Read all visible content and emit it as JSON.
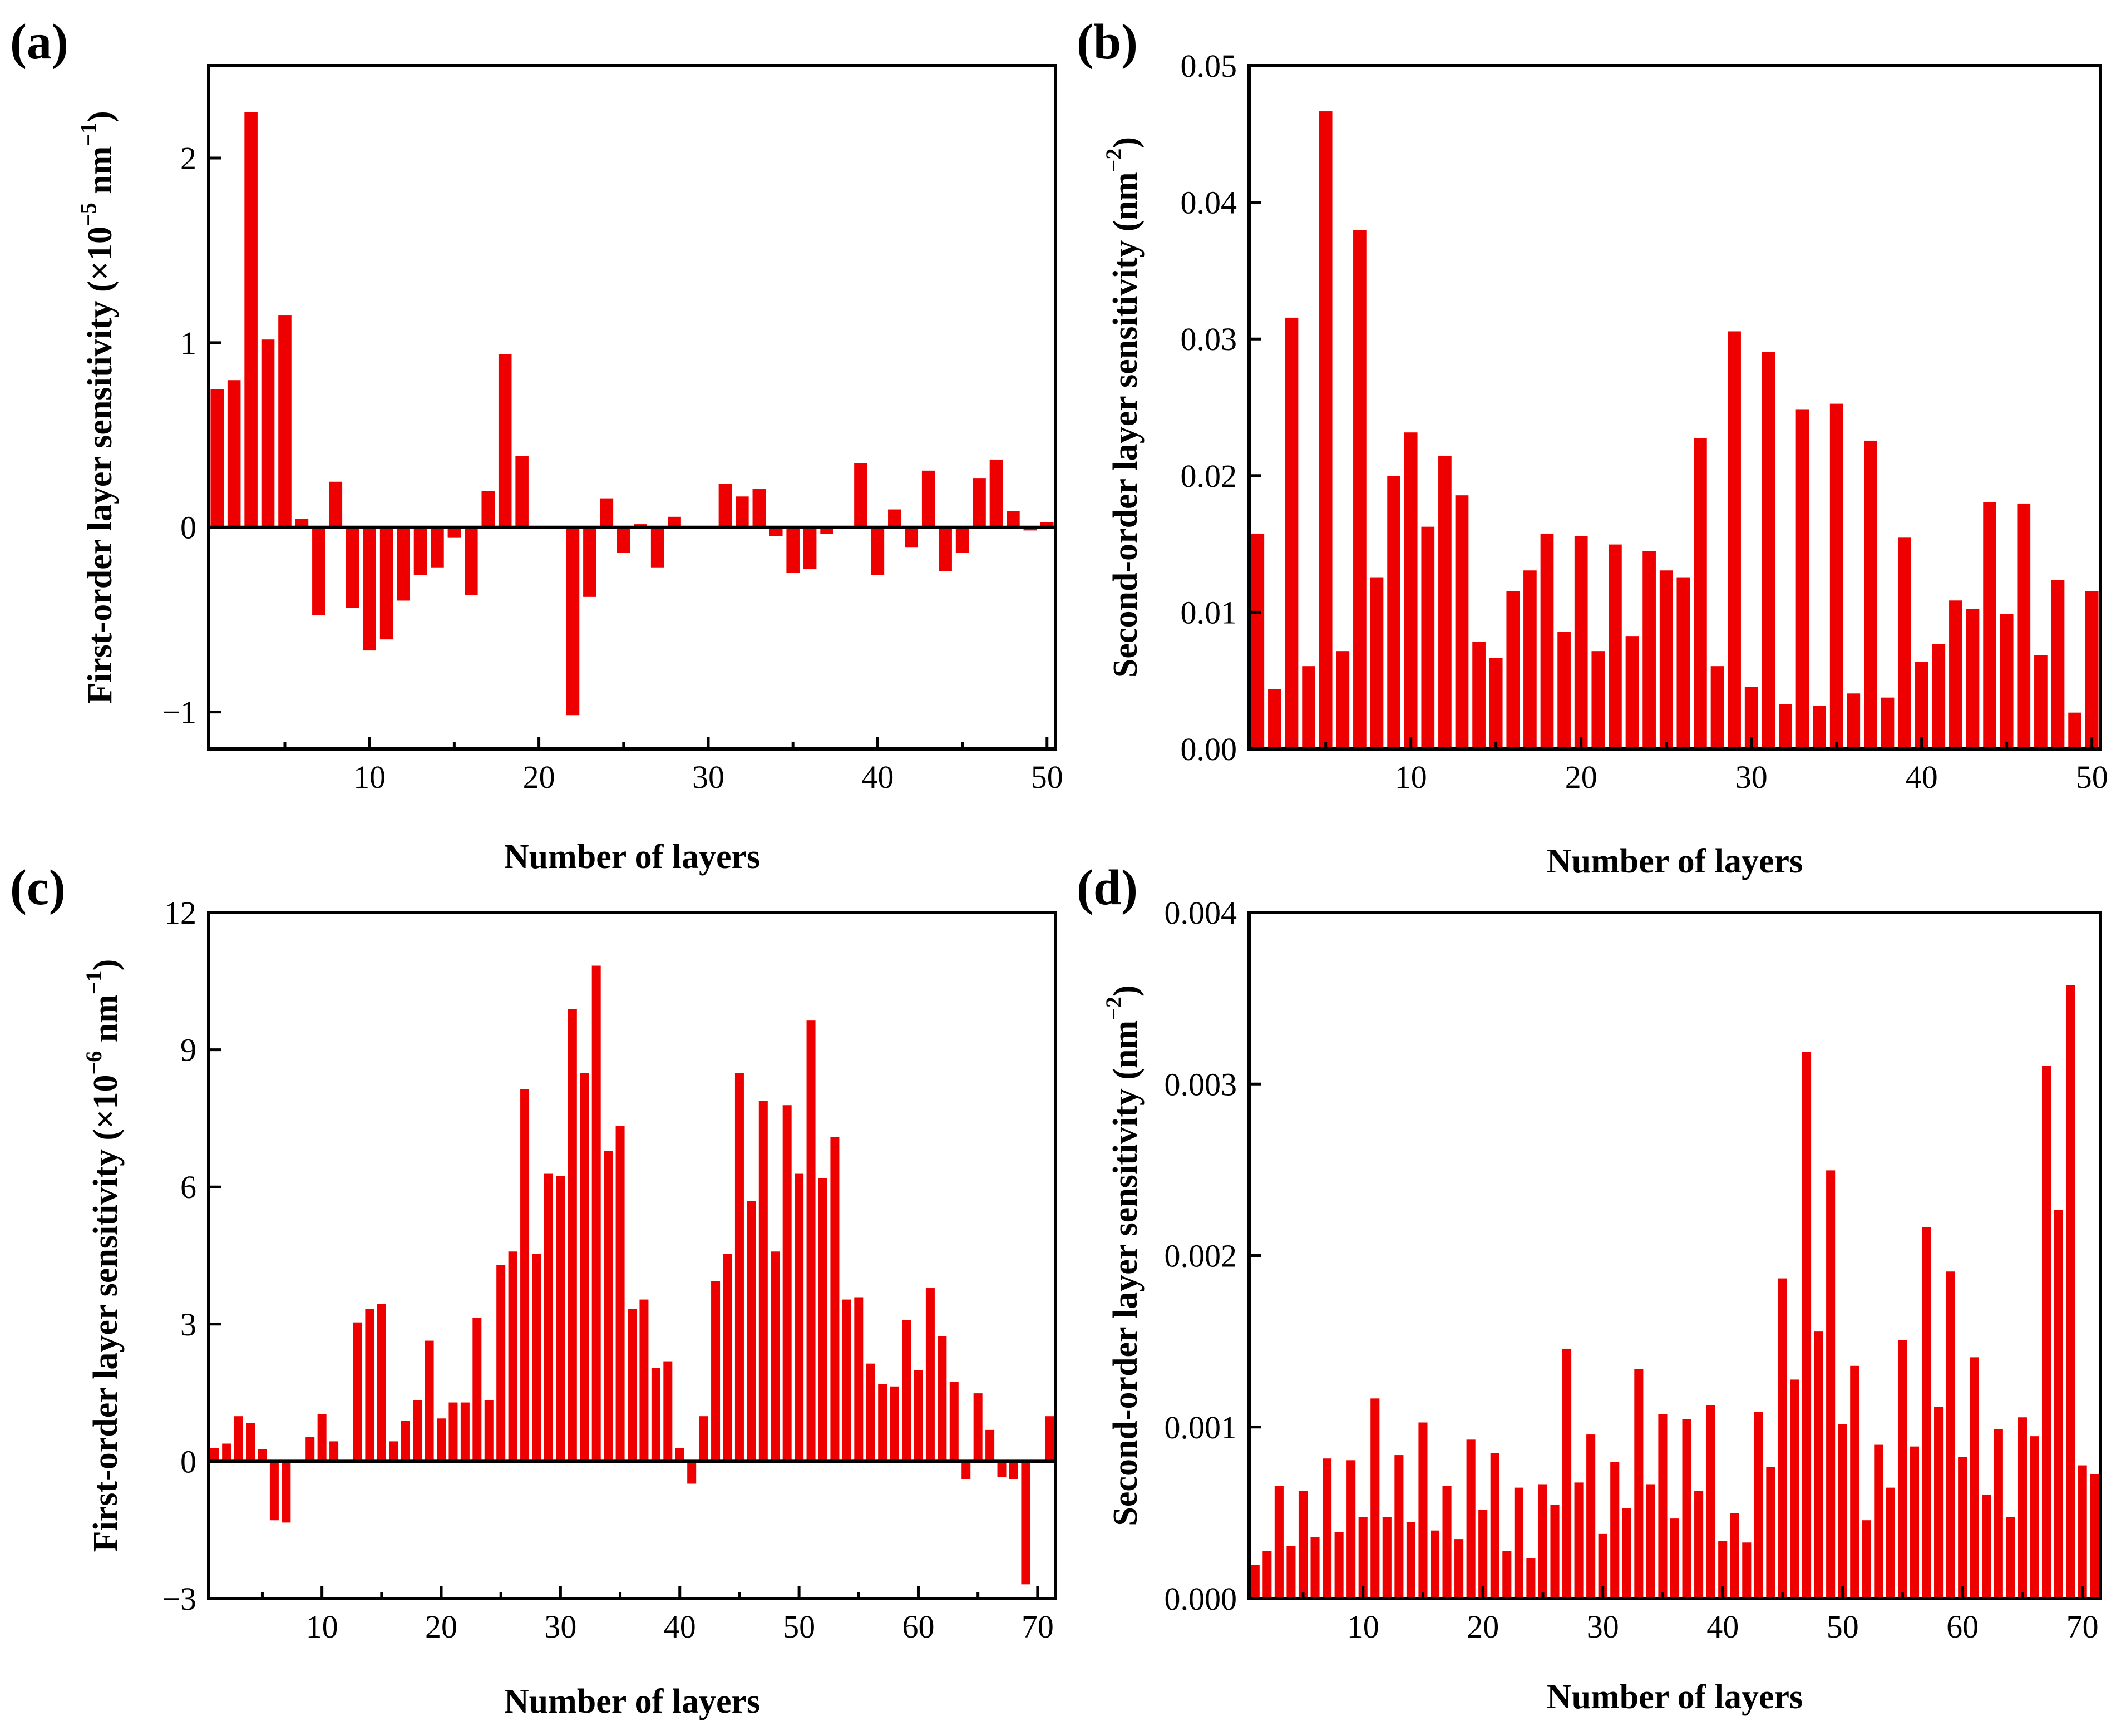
{
  "figure": {
    "bar_color": "#ee0000",
    "axis_color": "#000000",
    "background": "#ffffff"
  },
  "chart_data": [
    {
      "panel": "(a)",
      "type": "bar",
      "title": "",
      "xlabel": "Number of layers",
      "ylabel_pre": "First-order layer sensitivity (×10",
      "ylabel_exp": "−5",
      "ylabel_mid": " nm",
      "ylabel_exp2": "−1",
      "ylabel_post": ")",
      "xlim": [
        0.5,
        50.5
      ],
      "ylim": [
        -1.2,
        2.5
      ],
      "xticks": [
        10,
        20,
        30,
        40,
        50
      ],
      "xtick_labels": [
        "10",
        "20",
        "30",
        "40",
        "50"
      ],
      "yticks": [
        -1,
        0,
        1,
        2
      ],
      "ytick_labels": [
        "−1",
        "0",
        "1",
        "2"
      ],
      "zero_line": true,
      "x": [
        1,
        2,
        3,
        4,
        5,
        6,
        7,
        8,
        9,
        10,
        11,
        12,
        13,
        14,
        15,
        16,
        17,
        18,
        19,
        20,
        21,
        22,
        23,
        24,
        25,
        26,
        27,
        28,
        29,
        30,
        31,
        32,
        33,
        34,
        35,
        36,
        37,
        38,
        39,
        40,
        41,
        42,
        43,
        44,
        45,
        46,
        47,
        48,
        49,
        50
      ],
      "values": [
        0.75,
        0.8,
        2.25,
        1.02,
        1.15,
        0.05,
        -0.48,
        0.25,
        -0.44,
        -0.67,
        -0.61,
        -0.4,
        -0.26,
        -0.22,
        -0.06,
        -0.37,
        0.2,
        0.94,
        0.39,
        0,
        -0.01,
        -1.02,
        -0.38,
        0.16,
        -0.14,
        0.02,
        -0.22,
        0.06,
        0,
        -0.01,
        0.24,
        0.17,
        0.21,
        -0.05,
        -0.25,
        -0.23,
        -0.04,
        0,
        0.35,
        -0.26,
        0.1,
        -0.11,
        0.31,
        -0.24,
        -0.14,
        0.27,
        0.37,
        0.09,
        -0.02,
        0.03
      ]
    },
    {
      "panel": "(b)",
      "type": "bar",
      "title": "",
      "xlabel": "Number of layers",
      "ylabel_pre": "Second-order layer sensitivity (nm",
      "ylabel_exp": "−2",
      "ylabel_mid": "",
      "ylabel_exp2": "",
      "ylabel_post": ")",
      "xlim": [
        0.5,
        50.5
      ],
      "ylim": [
        0,
        0.05
      ],
      "xticks": [
        10,
        20,
        30,
        40,
        50
      ],
      "xtick_labels": [
        "10",
        "20",
        "30",
        "40",
        "50"
      ],
      "yticks": [
        0,
        0.01,
        0.02,
        0.03,
        0.04,
        0.05
      ],
      "ytick_labels": [
        "0.00",
        "0.01",
        "0.02",
        "0.03",
        "0.04",
        "0.05"
      ],
      "zero_line": false,
      "x": [
        1,
        2,
        3,
        4,
        5,
        6,
        7,
        8,
        9,
        10,
        11,
        12,
        13,
        14,
        15,
        16,
        17,
        18,
        19,
        20,
        21,
        22,
        23,
        24,
        25,
        26,
        27,
        28,
        29,
        30,
        31,
        32,
        33,
        34,
        35,
        36,
        37,
        38,
        39,
        40,
        41,
        42,
        43,
        44,
        45,
        46,
        47,
        48,
        49,
        50
      ],
      "values": [
        0.0158,
        0.0044,
        0.0316,
        0.0061,
        0.0467,
        0.0072,
        0.038,
        0.0126,
        0.02,
        0.0232,
        0.0163,
        0.0215,
        0.0186,
        0.0079,
        0.0067,
        0.0116,
        0.0131,
        0.0158,
        0.0086,
        0.0156,
        0.0072,
        0.015,
        0.0083,
        0.0145,
        0.0131,
        0.0126,
        0.0228,
        0.0061,
        0.0306,
        0.0046,
        0.0291,
        0.0033,
        0.0249,
        0.0032,
        0.0253,
        0.0041,
        0.0226,
        0.0038,
        0.0155,
        0.0064,
        0.0077,
        0.0109,
        0.0103,
        0.0181,
        0.0099,
        0.018,
        0.0069,
        0.0124,
        0.0027,
        0.0116
      ]
    },
    {
      "panel": "(c)",
      "type": "bar",
      "title": "",
      "xlabel": "Number of layers",
      "ylabel_pre": "First-order layer sensitivity (×10",
      "ylabel_exp": "−6",
      "ylabel_mid": " nm",
      "ylabel_exp2": "−1",
      "ylabel_post": ")",
      "xlim": [
        0.5,
        71.5
      ],
      "ylim": [
        -3,
        12
      ],
      "xticks": [
        10,
        20,
        30,
        40,
        50,
        60,
        70
      ],
      "xtick_labels": [
        "10",
        "20",
        "30",
        "40",
        "50",
        "60",
        "70"
      ],
      "yticks": [
        -3,
        0,
        3,
        6,
        9,
        12
      ],
      "ytick_labels": [
        "−3",
        "0",
        "3",
        "6",
        "9",
        "12"
      ],
      "zero_line": true,
      "x": [
        1,
        2,
        3,
        4,
        5,
        6,
        7,
        8,
        9,
        10,
        11,
        12,
        13,
        14,
        15,
        16,
        17,
        18,
        19,
        20,
        21,
        22,
        23,
        24,
        25,
        26,
        27,
        28,
        29,
        30,
        31,
        32,
        33,
        34,
        35,
        36,
        37,
        38,
        39,
        40,
        41,
        42,
        43,
        44,
        45,
        46,
        47,
        48,
        49,
        50,
        51,
        52,
        53,
        54,
        55,
        56,
        57,
        58,
        59,
        60,
        61,
        62,
        63,
        64,
        65,
        66,
        67,
        68,
        69,
        70,
        71
      ],
      "values": [
        0.3,
        0.4,
        1.0,
        0.85,
        0.28,
        -1.3,
        -1.35,
        0,
        0.55,
        1.05,
        0.45,
        0,
        3.05,
        3.35,
        3.45,
        0.45,
        0.9,
        1.35,
        2.65,
        0.95,
        1.3,
        1.3,
        3.15,
        1.35,
        4.3,
        4.6,
        8.15,
        4.55,
        6.3,
        6.25,
        9.9,
        8.5,
        10.85,
        6.8,
        7.35,
        3.35,
        3.55,
        2.05,
        2.2,
        0.3,
        -0.5,
        1.0,
        3.95,
        4.55,
        8.5,
        5.7,
        7.9,
        4.6,
        7.8,
        6.3,
        9.65,
        6.2,
        7.1,
        3.55,
        3.6,
        2.15,
        1.7,
        1.65,
        3.1,
        2.0,
        3.8,
        2.75,
        1.75,
        -0.4,
        1.5,
        0.7,
        -0.35,
        -0.4,
        -2.7,
        0,
        1.0
      ]
    },
    {
      "panel": "(d)",
      "type": "bar",
      "title": "",
      "xlabel": "Number of layers",
      "ylabel_pre": "Second-order layer sensitivity (nm",
      "ylabel_exp": "−2",
      "ylabel_mid": "",
      "ylabel_exp2": "",
      "ylabel_post": ")",
      "xlim": [
        0.5,
        71.5
      ],
      "ylim": [
        0,
        0.004
      ],
      "xticks": [
        10,
        20,
        30,
        40,
        50,
        60,
        70
      ],
      "xtick_labels": [
        "10",
        "20",
        "30",
        "40",
        "50",
        "60",
        "70"
      ],
      "yticks": [
        0,
        0.001,
        0.002,
        0.003,
        0.004
      ],
      "ytick_labels": [
        "0.000",
        "0.001",
        "0.002",
        "0.003",
        "0.004"
      ],
      "zero_line": false,
      "x": [
        1,
        2,
        3,
        4,
        5,
        6,
        7,
        8,
        9,
        10,
        11,
        12,
        13,
        14,
        15,
        16,
        17,
        18,
        19,
        20,
        21,
        22,
        23,
        24,
        25,
        26,
        27,
        28,
        29,
        30,
        31,
        32,
        33,
        34,
        35,
        36,
        37,
        38,
        39,
        40,
        41,
        42,
        43,
        44,
        45,
        46,
        47,
        48,
        49,
        50,
        51,
        52,
        53,
        54,
        55,
        56,
        57,
        58,
        59,
        60,
        61,
        62,
        63,
        64,
        65,
        66,
        67,
        68,
        69,
        70,
        71
      ],
      "values": [
        0.0002,
        0.00028,
        0.00066,
        0.00031,
        0.00063,
        0.00036,
        0.00082,
        0.00039,
        0.00081,
        0.00048,
        0.00117,
        0.00048,
        0.00084,
        0.00045,
        0.00103,
        0.0004,
        0.00066,
        0.00035,
        0.00093,
        0.00052,
        0.00085,
        0.00028,
        0.00065,
        0.00024,
        0.00067,
        0.00055,
        0.00146,
        0.00068,
        0.00096,
        0.00038,
        0.0008,
        0.00053,
        0.00134,
        0.00067,
        0.00108,
        0.00047,
        0.00105,
        0.00063,
        0.00113,
        0.00034,
        0.0005,
        0.00033,
        0.00109,
        0.00077,
        0.00187,
        0.00128,
        0.00319,
        0.00156,
        0.0025,
        0.00102,
        0.00136,
        0.00046,
        0.0009,
        0.00065,
        0.00151,
        0.00089,
        0.00217,
        0.00112,
        0.00191,
        0.00083,
        0.00141,
        0.00061,
        0.00099,
        0.00048,
        0.00106,
        0.00095,
        0.00311,
        0.00227,
        0.00358,
        0.00078,
        0.00073
      ]
    }
  ]
}
